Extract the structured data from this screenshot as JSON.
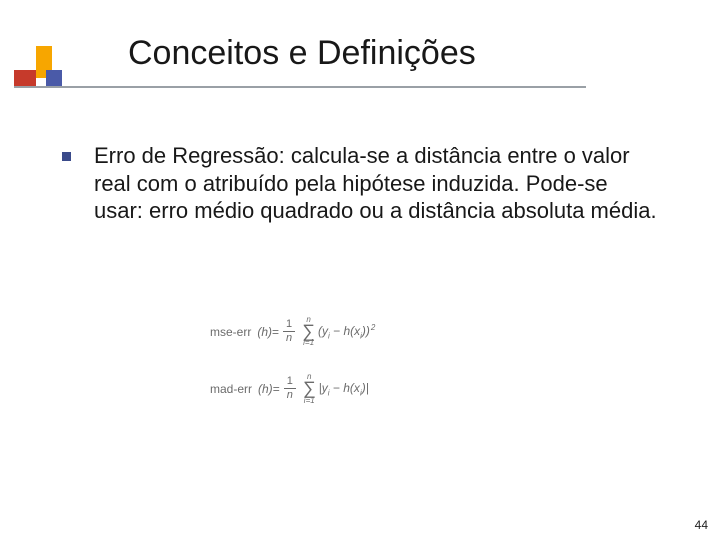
{
  "slide": {
    "title": "Conceitos e Definições",
    "body": "Erro de Regressão: calcula-se a distância entre o valor real com o atribuído pela hipótese induzida. Pode-se usar: erro médio quadrado ou a distância absoluta média.",
    "page_number": "44"
  },
  "formulas": {
    "mse": {
      "label": "mse-err",
      "arg": "(h)",
      "eq": " = ",
      "frac_num": "1",
      "frac_den": "n",
      "sum_ub": "n",
      "sum_lb": "i=1",
      "term_open": "(",
      "term_y": "y",
      "term_i": "i",
      "term_minus": " − h(x",
      "term_close": "))",
      "exp": "2"
    },
    "mad": {
      "label": "mad-err",
      "arg": "(h)",
      "eq": " = ",
      "frac_num": "1",
      "frac_den": "n",
      "sum_ub": "n",
      "sum_lb": "i=1",
      "term_open": "|",
      "term_y": "y",
      "term_i": "i",
      "term_minus": " − h(x",
      "term_close": ")|"
    }
  },
  "style": {
    "title_fontsize": 34,
    "body_fontsize": 22,
    "text_color": "#181818",
    "bullet_color": "#3a4a8a",
    "underline_color": "#9aa0a6",
    "logo_colors": {
      "yellow": "#f7a600",
      "red": "#c63a2b",
      "blue": "#4a5aa8"
    },
    "formula_color": "#6b6b6b",
    "background_color": "#ffffff"
  }
}
